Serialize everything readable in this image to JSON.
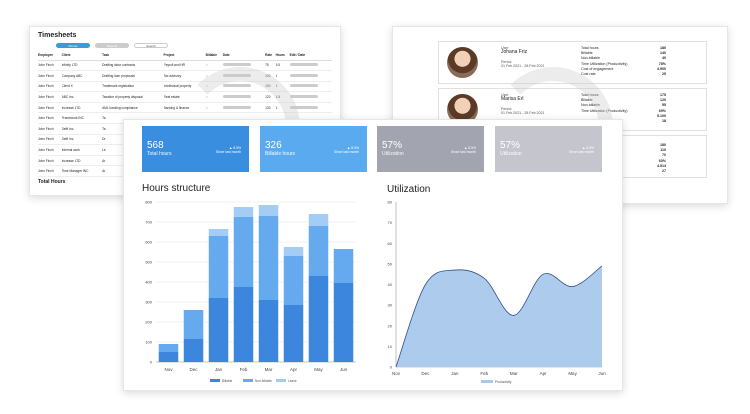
{
  "timesheets": {
    "title": "Timesheets",
    "tabs": [
      "Period",
      "Reports",
      "Search"
    ],
    "headers": [
      "Employee",
      "Client",
      "Task",
      "Project",
      "Billable",
      "Date",
      "Rate",
      "Hours",
      "Edit / Date"
    ],
    "rows": [
      {
        "employee": "John Finch",
        "client": "Infinity LTD",
        "task": "Drafting labor contracts",
        "project": "Payroll and HR",
        "billable": "✓",
        "rate": "75",
        "hours": "6.5"
      },
      {
        "employee": "John Finch",
        "client": "Company ABC",
        "task": "Drafting loan proposals",
        "project": "Tax advisory",
        "billable": "✓",
        "rate": "100",
        "hours": "1"
      },
      {
        "employee": "John Finch",
        "client": "Client X",
        "task": "Trademark registration",
        "project": "Intellectual property",
        "billable": "✓",
        "rate": "100",
        "hours": "1"
      },
      {
        "employee": "John Finch",
        "client": "ABC Inc.",
        "task": "Taxation of property disposal",
        "project": "Real estate",
        "billable": "✓",
        "rate": "120",
        "hours": "1.5"
      },
      {
        "employee": "John Finch",
        "client": "Increase LTD",
        "task": "AML banking compliance",
        "project": "Banking & finance",
        "billable": "✓",
        "rate": "130",
        "hours": "1"
      },
      {
        "employee": "John Finch",
        "client": "Framework INC",
        "task": "Ta",
        "project": "",
        "billable": "",
        "rate": "",
        "hours": ""
      },
      {
        "employee": "John Finch",
        "client": "Delft Inc.",
        "task": "Ta",
        "project": "",
        "billable": "",
        "rate": "",
        "hours": ""
      },
      {
        "employee": "John Finch",
        "client": "Delft Inc.",
        "task": "Dr",
        "project": "",
        "billable": "",
        "rate": "",
        "hours": ""
      },
      {
        "employee": "John Finch",
        "client": "Internal work",
        "task": "Le",
        "project": "",
        "billable": "",
        "rate": "",
        "hours": ""
      },
      {
        "employee": "John Finch",
        "client": "Increase LTD",
        "task": "Ar",
        "project": "",
        "billable": "",
        "rate": "",
        "hours": ""
      },
      {
        "employee": "John Finch",
        "client": "Time Manager INC",
        "task": "Ar",
        "project": "",
        "billable": "",
        "rate": "",
        "hours": ""
      }
    ],
    "total_label": "Total Hours"
  },
  "users": [
    {
      "role": "User",
      "name": "Johana Friz",
      "period_label": "Period",
      "period": "01 Feb 2021 - 28 Feb 2021",
      "stats": [
        [
          "Total hours",
          "180"
        ],
        [
          "Billable",
          "140"
        ],
        [
          "Non-billable",
          "40"
        ],
        [
          "Time Utilization (Productivity)",
          "78%"
        ],
        [
          "Cost of engagement",
          "4.900"
        ],
        [
          "Cost rate",
          "25"
        ]
      ]
    },
    {
      "role": "User",
      "name": "Marisa Erl",
      "period_label": "Period",
      "period": "01 Feb 2021 - 28 Feb 2021",
      "stats": [
        [
          "Total hours",
          "175"
        ],
        [
          "Billable",
          "120"
        ],
        [
          "Non-billable",
          "55"
        ],
        [
          "Time Utilization (Productivity)",
          "69%"
        ],
        [
          "",
          "5.100"
        ],
        [
          "",
          "18"
        ]
      ]
    },
    {
      "partial_label": "ivity)",
      "stats": [
        [
          "",
          "180"
        ],
        [
          "",
          "110"
        ],
        [
          "",
          "70"
        ],
        [
          "",
          "60%"
        ],
        [
          "",
          "4.914"
        ],
        [
          "",
          "27"
        ]
      ]
    }
  ],
  "kpis": [
    {
      "value": "568",
      "label": "Total hours",
      "delta": "▲ 8.5%",
      "delta_sub": "Since last month",
      "color": "#3a8ee0"
    },
    {
      "value": "326",
      "label": "Billable hours",
      "delta": "▲ 8.5%",
      "delta_sub": "Since last month",
      "color": "#5aaaf0"
    },
    {
      "value": "57%",
      "label": "Utilization",
      "delta": "▲ 8.5%",
      "delta_sub": "Since last month",
      "color": "#a2a4b0"
    },
    {
      "value": "57%",
      "label": "Utilization",
      "delta": "▲ 8.5%",
      "delta_sub": "Since last month",
      "color": "#c4c5cd"
    }
  ],
  "chart_data": [
    {
      "type": "bar",
      "title": "Hours structure",
      "categories": [
        "Nov",
        "Dec",
        "Jan",
        "Feb",
        "Mar",
        "Apr",
        "May",
        "Jun"
      ],
      "stacked": true,
      "series": [
        {
          "name": "Billable",
          "color": "#3d86de",
          "values": [
            50,
            115,
            320,
            375,
            310,
            285,
            430,
            395
          ]
        },
        {
          "name": "Non-billable",
          "color": "#65a9ef",
          "values": [
            40,
            145,
            310,
            350,
            420,
            245,
            250,
            170
          ]
        },
        {
          "name": "Leave",
          "color": "#a4cdf5",
          "values": [
            0,
            0,
            35,
            50,
            55,
            45,
            60,
            0
          ]
        }
      ],
      "ylim": [
        0,
        800
      ],
      "yticks": [
        0,
        100,
        200,
        300,
        400,
        500,
        600,
        700,
        800
      ],
      "grid": true,
      "legend": "bottom"
    },
    {
      "type": "area",
      "title": "Utilization",
      "categories": [
        "Nov",
        "Dec",
        "Jan",
        "Feb",
        "Mar",
        "Apr",
        "May",
        "Jun"
      ],
      "series": [
        {
          "name": "Productivity",
          "color": "#a9c8ec",
          "values": [
            0,
            40,
            47,
            43,
            25,
            45,
            39,
            49
          ]
        }
      ],
      "ylim": [
        0,
        80
      ],
      "yticks": [
        0,
        10,
        20,
        30,
        40,
        50,
        60,
        70,
        80
      ],
      "grid": false,
      "legend": "bottom"
    }
  ]
}
